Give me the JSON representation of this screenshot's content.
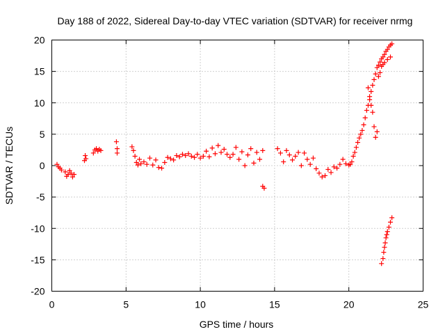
{
  "chart_data": {
    "type": "scatter",
    "title": "Day 188 of 2022, Sidereal Day-to-day VTEC variation (SDTVAR) for receiver nrmg",
    "xlabel": "GPS time / hours",
    "ylabel": "SDTVAR / TECUs",
    "xlim": [
      0,
      25
    ],
    "ylim": [
      -20,
      20
    ],
    "xticks": [
      0,
      5,
      10,
      15,
      20,
      25
    ],
    "xtick_labels": [
      "0",
      "5",
      "10",
      "15",
      "20",
      "25"
    ],
    "yticks": [
      -20,
      -15,
      -10,
      -5,
      0,
      5,
      10,
      15,
      20
    ],
    "ytick_labels": [
      "-20",
      "-15",
      "-10",
      "-5",
      "0",
      "5",
      "10",
      "15",
      "20"
    ],
    "grid": true,
    "marker": "+",
    "color": "#ff0000",
    "series": [
      {
        "name": "SDTVAR",
        "points": [
          [
            0.35,
            0.2
          ],
          [
            0.45,
            -0.2
          ],
          [
            0.55,
            -0.4
          ],
          [
            0.65,
            -0.7
          ],
          [
            0.9,
            -1.0
          ],
          [
            1.0,
            -1.7
          ],
          [
            1.1,
            -1.4
          ],
          [
            1.2,
            -0.8
          ],
          [
            1.3,
            -1.2
          ],
          [
            1.4,
            -1.8
          ],
          [
            1.5,
            -1.4
          ],
          [
            2.2,
            0.8
          ],
          [
            2.25,
            1.6
          ],
          [
            2.3,
            1.1
          ],
          [
            2.8,
            2.0
          ],
          [
            2.9,
            2.5
          ],
          [
            3.0,
            2.7
          ],
          [
            3.1,
            2.3
          ],
          [
            3.2,
            2.6
          ],
          [
            3.3,
            2.4
          ],
          [
            4.35,
            3.8
          ],
          [
            4.4,
            2.7
          ],
          [
            4.4,
            2.0
          ],
          [
            5.4,
            3.0
          ],
          [
            5.5,
            2.4
          ],
          [
            5.6,
            1.5
          ],
          [
            5.7,
            0.5
          ],
          [
            5.8,
            0.1
          ],
          [
            5.9,
            1.0
          ],
          [
            6.0,
            0.3
          ],
          [
            6.2,
            0.6
          ],
          [
            6.4,
            0.2
          ],
          [
            6.6,
            1.2
          ],
          [
            6.8,
            0.1
          ],
          [
            7.0,
            0.9
          ],
          [
            7.2,
            -0.3
          ],
          [
            7.4,
            -0.4
          ],
          [
            7.6,
            0.5
          ],
          [
            7.8,
            1.3
          ],
          [
            8.0,
            1.1
          ],
          [
            8.2,
            0.9
          ],
          [
            8.4,
            1.6
          ],
          [
            8.6,
            1.4
          ],
          [
            8.8,
            1.8
          ],
          [
            9.0,
            1.6
          ],
          [
            9.2,
            1.9
          ],
          [
            9.4,
            1.5
          ],
          [
            9.6,
            1.3
          ],
          [
            9.8,
            1.8
          ],
          [
            10.0,
            1.2
          ],
          [
            10.2,
            1.5
          ],
          [
            10.4,
            2.3
          ],
          [
            10.6,
            1.4
          ],
          [
            10.8,
            2.8
          ],
          [
            11.0,
            1.9
          ],
          [
            11.2,
            3.2
          ],
          [
            11.4,
            2.1
          ],
          [
            11.6,
            2.6
          ],
          [
            11.8,
            1.8
          ],
          [
            12.0,
            1.3
          ],
          [
            12.2,
            1.8
          ],
          [
            12.4,
            2.9
          ],
          [
            12.6,
            1.0
          ],
          [
            12.8,
            2.2
          ],
          [
            13.0,
            0.0
          ],
          [
            13.2,
            1.7
          ],
          [
            13.4,
            2.7
          ],
          [
            13.6,
            0.4
          ],
          [
            13.8,
            2.1
          ],
          [
            14.0,
            1.0
          ],
          [
            14.2,
            2.4
          ],
          [
            14.2,
            -3.3
          ],
          [
            14.3,
            -3.6
          ],
          [
            15.2,
            2.7
          ],
          [
            15.4,
            2.0
          ],
          [
            15.6,
            0.6
          ],
          [
            15.8,
            2.4
          ],
          [
            16.0,
            1.7
          ],
          [
            16.2,
            0.9
          ],
          [
            16.4,
            1.5
          ],
          [
            16.6,
            2.1
          ],
          [
            16.8,
            0.0
          ],
          [
            17.0,
            2.0
          ],
          [
            17.2,
            1.0
          ],
          [
            17.4,
            0.2
          ],
          [
            17.6,
            1.2
          ],
          [
            17.8,
            -0.5
          ],
          [
            18.0,
            -1.2
          ],
          [
            18.2,
            -1.8
          ],
          [
            18.4,
            -1.6
          ],
          [
            18.6,
            -0.6
          ],
          [
            18.8,
            -1.1
          ],
          [
            19.0,
            -0.2
          ],
          [
            19.2,
            -0.4
          ],
          [
            19.4,
            0.2
          ],
          [
            19.6,
            1.0
          ],
          [
            19.8,
            0.3
          ],
          [
            20.0,
            0.1
          ],
          [
            20.1,
            0.2
          ],
          [
            20.2,
            0.6
          ],
          [
            20.3,
            1.5
          ],
          [
            20.4,
            2.1
          ],
          [
            20.5,
            2.9
          ],
          [
            20.6,
            3.7
          ],
          [
            20.7,
            4.4
          ],
          [
            20.8,
            5.0
          ],
          [
            20.9,
            5.6
          ],
          [
            21.0,
            6.5
          ],
          [
            21.1,
            7.6
          ],
          [
            21.2,
            8.8
          ],
          [
            21.3,
            9.6
          ],
          [
            21.4,
            10.5
          ],
          [
            21.5,
            11.8
          ],
          [
            21.6,
            12.8
          ],
          [
            21.7,
            13.7
          ],
          [
            21.8,
            14.6
          ],
          [
            21.9,
            15.6
          ],
          [
            22.0,
            16.0
          ],
          [
            22.1,
            16.5
          ],
          [
            22.2,
            17.0
          ],
          [
            22.3,
            17.3
          ],
          [
            22.4,
            17.7
          ],
          [
            22.5,
            18.2
          ],
          [
            22.6,
            18.5
          ],
          [
            22.7,
            18.9
          ],
          [
            22.8,
            19.2
          ],
          [
            22.9,
            19.4
          ],
          [
            21.3,
            12.4
          ],
          [
            21.4,
            11.0
          ],
          [
            21.5,
            9.6
          ],
          [
            21.6,
            8.5
          ],
          [
            21.7,
            6.2
          ],
          [
            21.8,
            4.5
          ],
          [
            21.9,
            5.4
          ],
          [
            22.0,
            14.2
          ],
          [
            22.1,
            14.8
          ],
          [
            22.2,
            15.8
          ],
          [
            22.3,
            16.1
          ],
          [
            22.4,
            16.4
          ],
          [
            22.6,
            16.9
          ],
          [
            22.8,
            17.3
          ],
          [
            22.2,
            -15.6
          ],
          [
            22.3,
            -14.8
          ],
          [
            22.35,
            -13.8
          ],
          [
            22.4,
            -13.0
          ],
          [
            22.45,
            -12.3
          ],
          [
            22.5,
            -11.5
          ],
          [
            22.55,
            -11.0
          ],
          [
            22.6,
            -10.5
          ],
          [
            22.7,
            -9.8
          ],
          [
            22.8,
            -9.0
          ],
          [
            22.9,
            -8.3
          ]
        ]
      }
    ]
  }
}
